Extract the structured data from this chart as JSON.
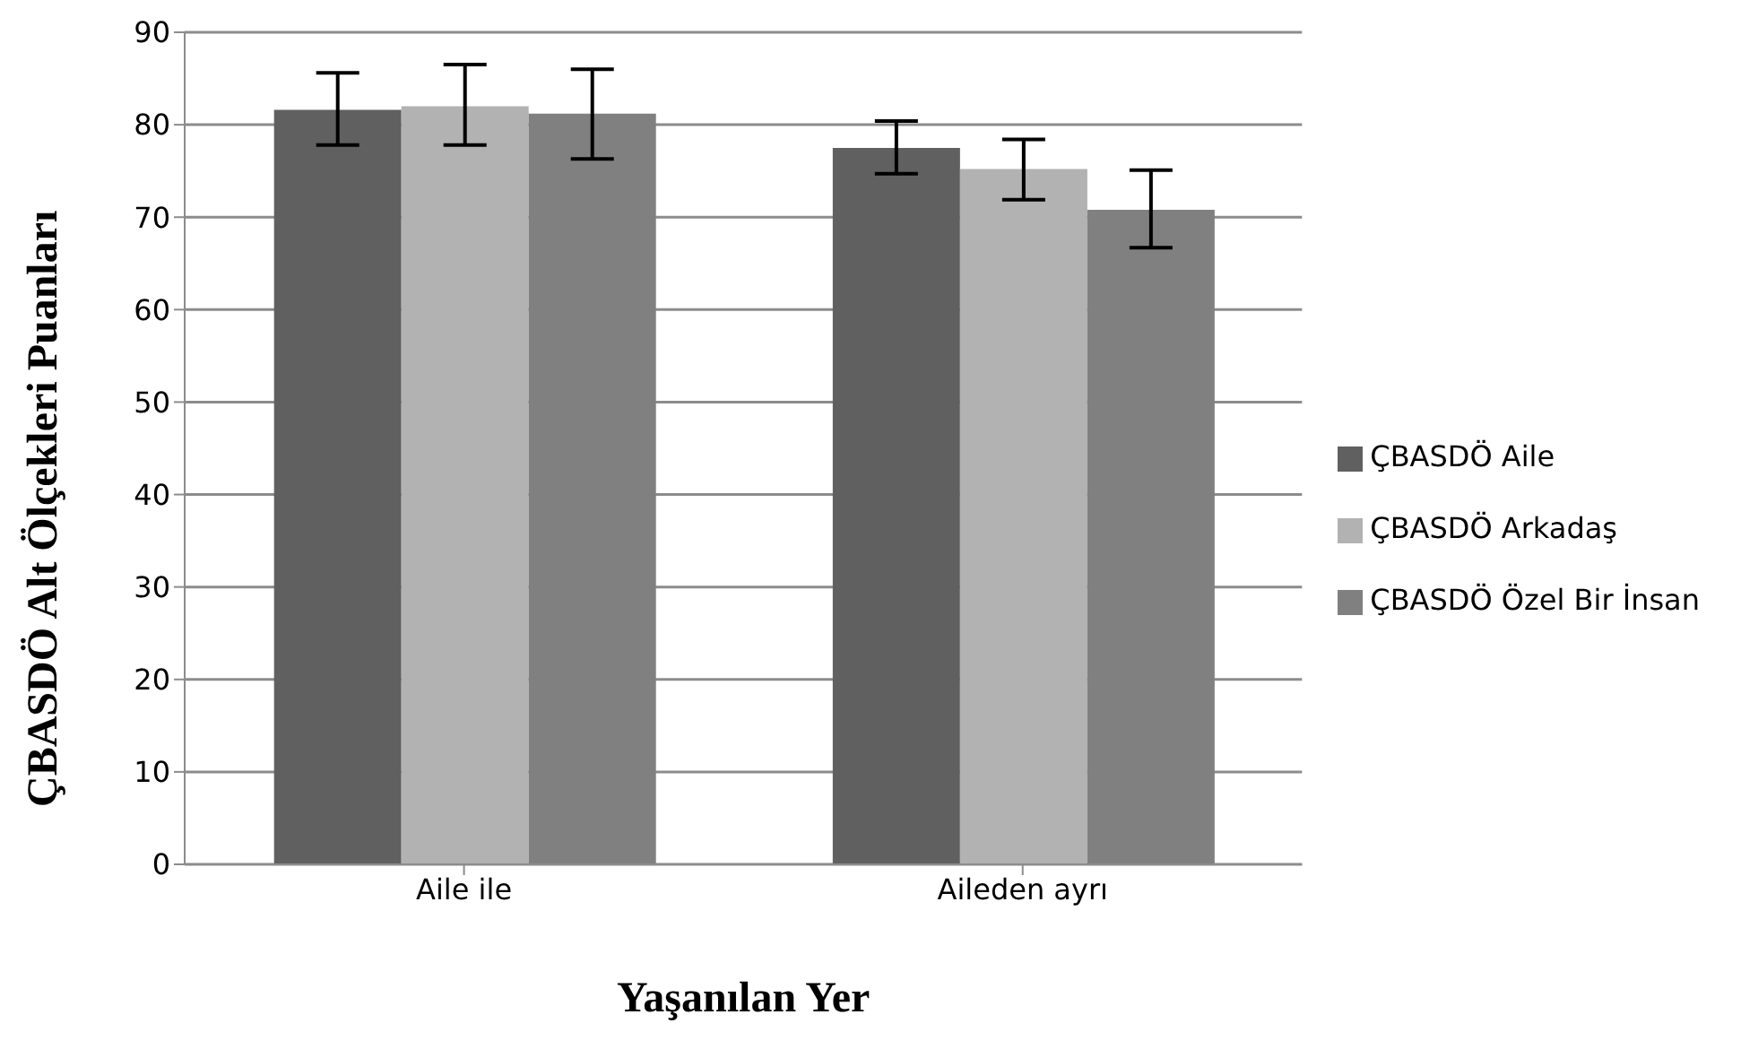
{
  "chart_data": {
    "type": "bar",
    "xlabel": "Yaşanılan Yer",
    "ylabel": "ÇBASDÖ  Alt Ölçekleri Puanları",
    "categories": [
      "Aile ile",
      "Aileden ayrı"
    ],
    "series": [
      {
        "name": "ÇBASDÖ Aile",
        "color": "#606060",
        "values": [
          81.6,
          77.5
        ],
        "errors": [
          [
            77.8,
            85.6
          ],
          [
            74.7,
            80.4
          ]
        ]
      },
      {
        "name": "ÇBASDÖ Arkadaş",
        "color": "#b2b2b2",
        "values": [
          82.0,
          75.2
        ],
        "errors": [
          [
            77.8,
            86.5
          ],
          [
            71.9,
            78.4
          ]
        ]
      },
      {
        "name": "ÇBASDÖ Özel Bir İnsan",
        "color": "#808080",
        "values": [
          81.2,
          70.8
        ],
        "errors": [
          [
            76.3,
            86.0
          ],
          [
            66.7,
            75.1
          ]
        ]
      }
    ],
    "ylim": [
      0,
      90
    ],
    "yticks": [
      0,
      10,
      20,
      30,
      40,
      50,
      60,
      70,
      80,
      90
    ],
    "grid": "y",
    "legend": "right"
  }
}
